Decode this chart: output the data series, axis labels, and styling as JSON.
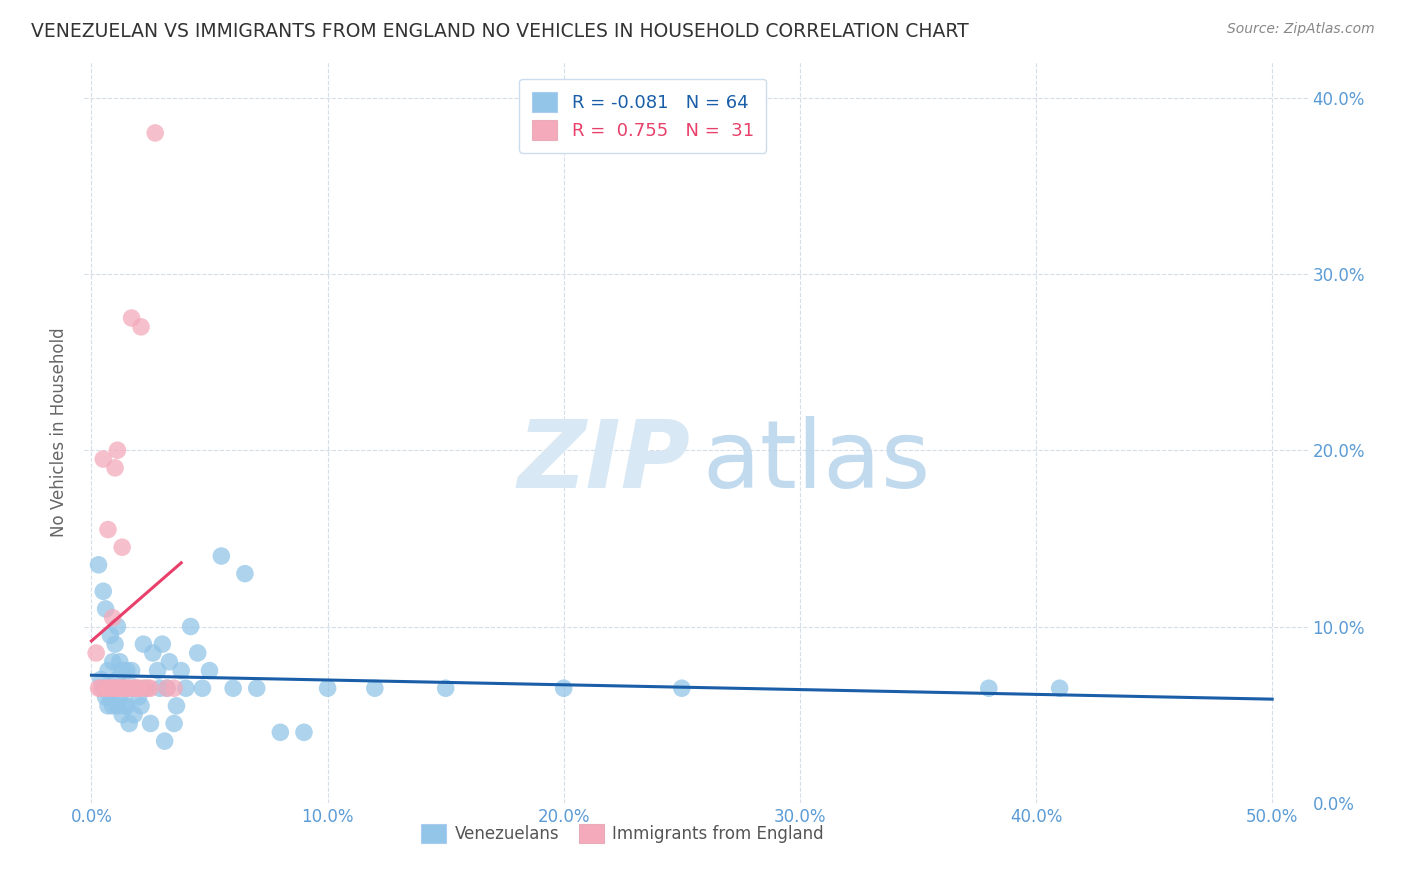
{
  "title": "VENEZUELAN VS IMMIGRANTS FROM ENGLAND NO VEHICLES IN HOUSEHOLD CORRELATION CHART",
  "source": "Source: ZipAtlas.com",
  "ylabel": "No Vehicles in Household",
  "ylim": [
    0.0,
    0.42
  ],
  "xlim": [
    -0.003,
    0.515
  ],
  "ytick_vals": [
    0.0,
    0.1,
    0.2,
    0.3,
    0.4
  ],
  "ytick_labels": [
    "0.0%",
    "10.0%",
    "20.0%",
    "30.0%",
    "40.0%"
  ],
  "xtick_vals": [
    0.0,
    0.1,
    0.2,
    0.3,
    0.4,
    0.5
  ],
  "xtick_labels": [
    "0.0%",
    "10.0%",
    "20.0%",
    "30.0%",
    "40.0%",
    "50.0%"
  ],
  "color_venezuelan": "#92C5E8",
  "color_england": "#F4AABB",
  "color_trendline_venezuelan": "#1A5EA8",
  "color_trendline_england": "#E8406A",
  "watermark_zip_color": "#D8E8F4",
  "watermark_atlas_color": "#B8D4EC",
  "background_color": "#FFFFFF",
  "grid_color": "#D5DDE8",
  "tick_color": "#5B9BD5",
  "venezuelan_x": [
    0.003,
    0.004,
    0.005,
    0.005,
    0.006,
    0.006,
    0.007,
    0.007,
    0.008,
    0.008,
    0.009,
    0.009,
    0.01,
    0.01,
    0.011,
    0.011,
    0.011,
    0.012,
    0.012,
    0.013,
    0.013,
    0.014,
    0.014,
    0.015,
    0.015,
    0.016,
    0.016,
    0.017,
    0.018,
    0.018,
    0.019,
    0.02,
    0.021,
    0.022,
    0.023,
    0.025,
    0.026,
    0.028,
    0.029,
    0.03,
    0.031,
    0.032,
    0.033,
    0.035,
    0.036,
    0.038,
    0.04,
    0.042,
    0.045,
    0.047,
    0.05,
    0.055,
    0.06,
    0.065,
    0.07,
    0.08,
    0.09,
    0.1,
    0.12,
    0.15,
    0.2,
    0.25,
    0.38,
    0.41
  ],
  "venezuelan_y": [
    0.135,
    0.07,
    0.12,
    0.065,
    0.11,
    0.06,
    0.075,
    0.055,
    0.095,
    0.06,
    0.08,
    0.055,
    0.09,
    0.065,
    0.1,
    0.07,
    0.055,
    0.08,
    0.06,
    0.075,
    0.05,
    0.065,
    0.055,
    0.075,
    0.055,
    0.065,
    0.045,
    0.075,
    0.065,
    0.05,
    0.065,
    0.06,
    0.055,
    0.09,
    0.065,
    0.045,
    0.085,
    0.075,
    0.065,
    0.09,
    0.035,
    0.065,
    0.08,
    0.045,
    0.055,
    0.075,
    0.065,
    0.1,
    0.085,
    0.065,
    0.075,
    0.14,
    0.065,
    0.13,
    0.065,
    0.04,
    0.04,
    0.065,
    0.065,
    0.065,
    0.065,
    0.065,
    0.065,
    0.065
  ],
  "england_x": [
    0.002,
    0.003,
    0.004,
    0.005,
    0.006,
    0.007,
    0.007,
    0.008,
    0.009,
    0.009,
    0.01,
    0.01,
    0.011,
    0.011,
    0.012,
    0.013,
    0.013,
    0.014,
    0.015,
    0.016,
    0.017,
    0.018,
    0.019,
    0.02,
    0.021,
    0.022,
    0.024,
    0.025,
    0.027,
    0.032,
    0.035
  ],
  "england_y": [
    0.085,
    0.065,
    0.065,
    0.195,
    0.065,
    0.065,
    0.155,
    0.065,
    0.105,
    0.065,
    0.19,
    0.065,
    0.2,
    0.065,
    0.065,
    0.145,
    0.065,
    0.065,
    0.065,
    0.065,
    0.275,
    0.065,
    0.065,
    0.065,
    0.27,
    0.065,
    0.065,
    0.065,
    0.38,
    0.065,
    0.065
  ],
  "legend_line1": "R = -0.081   N = 64",
  "legend_line2": "R =  0.755   N =  31",
  "bottom_legend1": "Venezuelans",
  "bottom_legend2": "Immigrants from England"
}
